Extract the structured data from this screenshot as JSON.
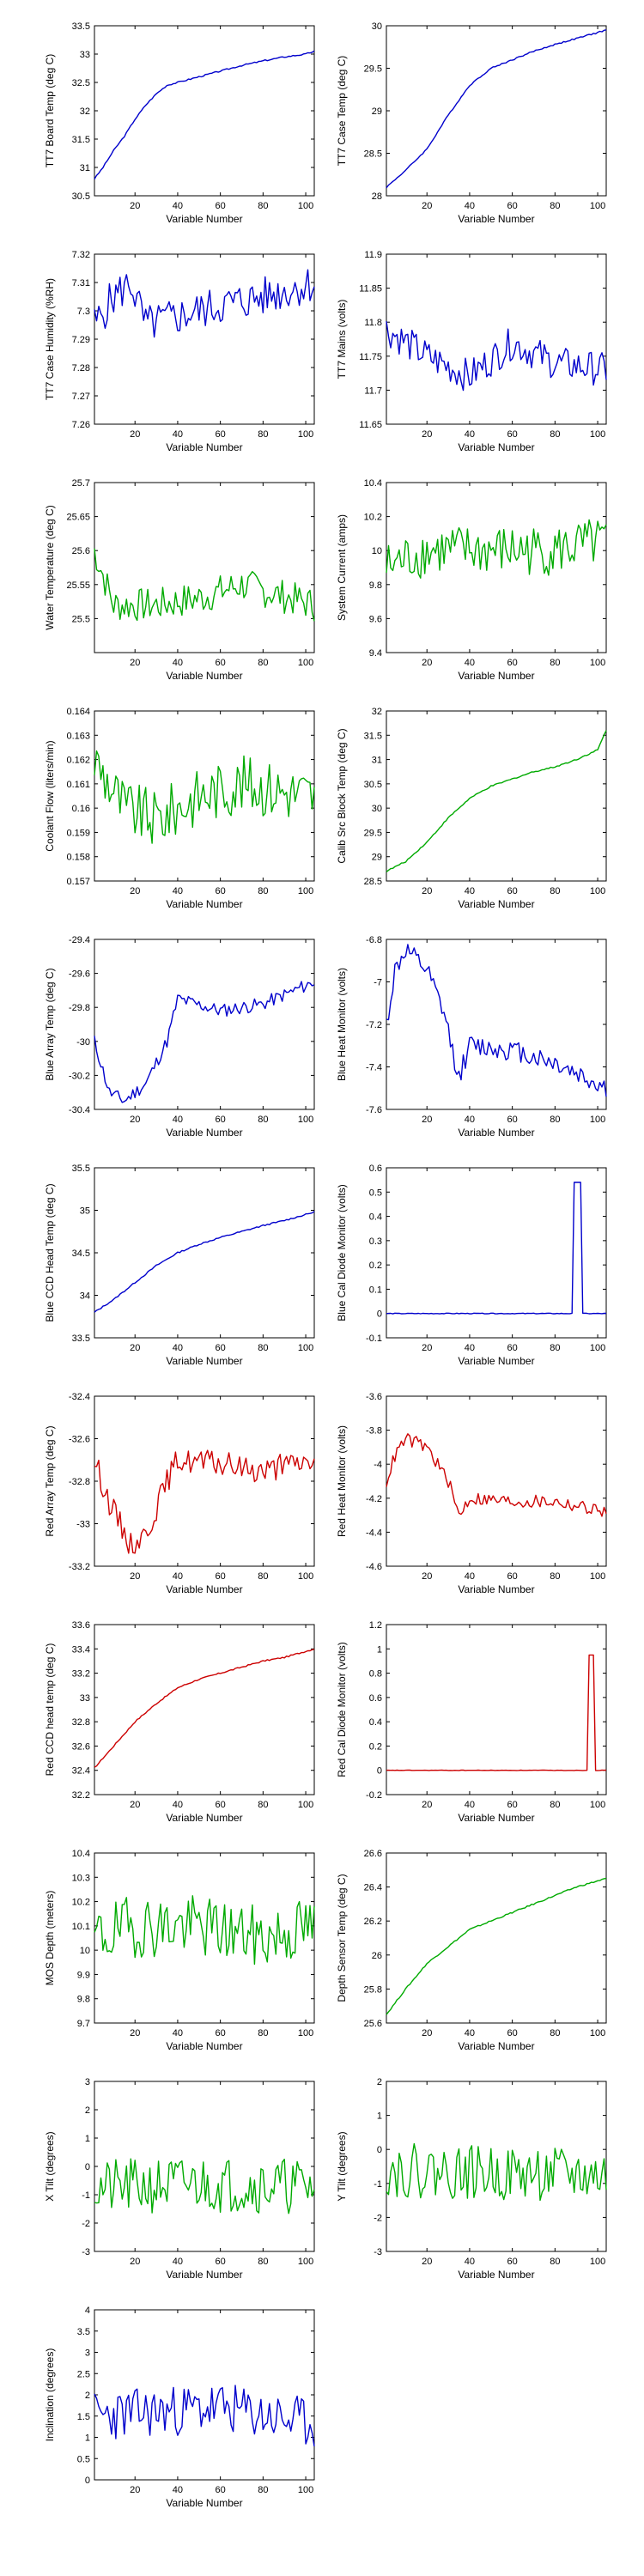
{
  "figure": {
    "title": ""
  },
  "chart_data": [
    {
      "type": "line",
      "ylabel": "TT7 Board Temp (deg C)",
      "xlabel": "Variable Number",
      "xlim": [
        1,
        104
      ],
      "xticks": [
        20,
        40,
        60,
        80,
        100
      ],
      "ylim": [
        30.5,
        33.5
      ],
      "yticks": [
        "30.5",
        "31",
        "31.5",
        "32",
        "32.5",
        "33",
        "33.5"
      ],
      "color": "#0000cc",
      "pattern": "rise",
      "points": [
        [
          1,
          30.8
        ],
        [
          5,
          31.0
        ],
        [
          10,
          31.3
        ],
        [
          15,
          31.55
        ],
        [
          20,
          31.85
        ],
        [
          25,
          32.1
        ],
        [
          30,
          32.3
        ],
        [
          35,
          32.45
        ],
        [
          40,
          32.5
        ],
        [
          50,
          32.6
        ],
        [
          60,
          32.7
        ],
        [
          70,
          32.8
        ],
        [
          80,
          32.88
        ],
        [
          90,
          32.95
        ],
        [
          100,
          33.0
        ],
        [
          104,
          33.05
        ]
      ]
    },
    {
      "type": "line",
      "ylabel": "TT7 Case Temp (deg C)",
      "xlabel": "Variable Number",
      "xlim": [
        1,
        104
      ],
      "xticks": [
        20,
        40,
        60,
        80,
        100
      ],
      "ylim": [
        28,
        30
      ],
      "yticks": [
        "28",
        "28.5",
        "29",
        "29.5",
        "30"
      ],
      "color": "#0000cc",
      "pattern": "rise",
      "points": [
        [
          1,
          28.1
        ],
        [
          10,
          28.3
        ],
        [
          20,
          28.55
        ],
        [
          30,
          28.95
        ],
        [
          40,
          29.3
        ],
        [
          50,
          29.5
        ],
        [
          60,
          29.6
        ],
        [
          70,
          29.7
        ],
        [
          80,
          29.78
        ],
        [
          90,
          29.85
        ],
        [
          100,
          29.92
        ],
        [
          104,
          29.95
        ]
      ]
    },
    {
      "type": "line",
      "ylabel": "TT7 Case Humidity (%RH)",
      "xlabel": "Variable Number",
      "xlim": [
        1,
        104
      ],
      "xticks": [
        20,
        40,
        60,
        80,
        100
      ],
      "ylim": [
        7.26,
        7.32
      ],
      "yticks": [
        "7.26",
        "7.27",
        "7.28",
        "7.29",
        "7.3",
        "7.31",
        "7.32"
      ],
      "color": "#0000cc",
      "pattern": "noisy",
      "noise": 0.007,
      "points": [
        [
          1,
          7.295
        ],
        [
          10,
          7.305
        ],
        [
          18,
          7.31
        ],
        [
          25,
          7.295
        ],
        [
          40,
          7.298
        ],
        [
          60,
          7.302
        ],
        [
          80,
          7.305
        ],
        [
          104,
          7.31
        ]
      ]
    },
    {
      "type": "line",
      "ylabel": "TT7 Mains (volts)",
      "xlabel": "Variable Number",
      "xlim": [
        1,
        104
      ],
      "xticks": [
        20,
        40,
        60,
        80,
        100
      ],
      "ylim": [
        11.65,
        11.9
      ],
      "yticks": [
        "11.65",
        "11.7",
        "11.75",
        "11.8",
        "11.85",
        "11.9"
      ],
      "color": "#0000cc",
      "pattern": "noisy",
      "noise": 0.025,
      "points": [
        [
          1,
          11.79
        ],
        [
          20,
          11.75
        ],
        [
          40,
          11.72
        ],
        [
          60,
          11.77
        ],
        [
          80,
          11.74
        ],
        [
          104,
          11.73
        ]
      ]
    },
    {
      "type": "line",
      "ylabel": "Water Temperature (deg C)",
      "xlabel": "Variable Number",
      "xlim": [
        1,
        104
      ],
      "xticks": [
        20,
        40,
        60,
        80,
        100
      ],
      "ylim": [
        25.45,
        25.7
      ],
      "yticks": [
        "25.5",
        "25.55",
        "25.6",
        "25.65",
        "25.7"
      ],
      "color": "#00aa00",
      "pattern": "noisy",
      "noise": 0.025,
      "points": [
        [
          1,
          25.6
        ],
        [
          10,
          25.52
        ],
        [
          30,
          25.52
        ],
        [
          50,
          25.53
        ],
        [
          70,
          25.55
        ],
        [
          104,
          25.52
        ]
      ]
    },
    {
      "type": "line",
      "ylabel": "System Current (amps)",
      "xlabel": "Variable Number",
      "xlim": [
        1,
        104
      ],
      "xticks": [
        20,
        40,
        60,
        80,
        100
      ],
      "ylim": [
        9.4,
        10.4
      ],
      "yticks": [
        "9.4",
        "9.6",
        "9.8",
        "10",
        "10.2",
        "10.4"
      ],
      "color": "#00aa00",
      "pattern": "noisy",
      "noise": 0.15,
      "points": [
        [
          1,
          9.9
        ],
        [
          20,
          10.0
        ],
        [
          50,
          10.0
        ],
        [
          80,
          10.0
        ],
        [
          104,
          10.05
        ]
      ]
    },
    {
      "type": "line",
      "ylabel": "Coolant Flow (liters/min)",
      "xlabel": "Variable Number",
      "xlim": [
        1,
        104
      ],
      "xticks": [
        20,
        40,
        60,
        80,
        100
      ],
      "ylim": [
        0.157,
        0.164
      ],
      "yticks": [
        "0.157",
        "0.158",
        "0.159",
        "0.16",
        "0.161",
        "0.162",
        "0.163",
        "0.164"
      ],
      "color": "#00aa00",
      "pattern": "noisy",
      "noise": 0.0012,
      "points": [
        [
          1,
          0.162
        ],
        [
          15,
          0.16
        ],
        [
          30,
          0.1595
        ],
        [
          50,
          0.1605
        ],
        [
          70,
          0.161
        ],
        [
          104,
          0.1605
        ]
      ]
    },
    {
      "type": "line",
      "ylabel": "Calib Src Block Temp (deg C)",
      "xlabel": "Variable Number",
      "xlim": [
        1,
        104
      ],
      "xticks": [
        20,
        40,
        60,
        80,
        100
      ],
      "ylim": [
        28.5,
        32
      ],
      "yticks": [
        "28.5",
        "29",
        "29.5",
        "30",
        "30.5",
        "31",
        "31.5",
        "32"
      ],
      "color": "#00aa00",
      "pattern": "rise",
      "points": [
        [
          1,
          28.7
        ],
        [
          10,
          28.9
        ],
        [
          20,
          29.3
        ],
        [
          30,
          29.8
        ],
        [
          40,
          30.2
        ],
        [
          50,
          30.45
        ],
        [
          60,
          30.6
        ],
        [
          70,
          30.75
        ],
        [
          80,
          30.85
        ],
        [
          90,
          31.0
        ],
        [
          100,
          31.2
        ],
        [
          104,
          31.6
        ]
      ]
    },
    {
      "type": "line",
      "ylabel": "Blue Array Temp (deg C)",
      "xlabel": "Variable Number",
      "xlim": [
        1,
        104
      ],
      "xticks": [
        20,
        40,
        60,
        80,
        100
      ],
      "ylim": [
        -30.4,
        -29.4
      ],
      "yticks": [
        "-30.4",
        "-30.2",
        "-30",
        "-29.8",
        "-29.6",
        "-29.4"
      ],
      "color": "#0000cc",
      "pattern": "noisy",
      "noise": 0.04,
      "points": [
        [
          1,
          -30.0
        ],
        [
          8,
          -30.3
        ],
        [
          15,
          -30.35
        ],
        [
          25,
          -30.25
        ],
        [
          35,
          -30.0
        ],
        [
          40,
          -29.75
        ],
        [
          60,
          -29.82
        ],
        [
          80,
          -29.78
        ],
        [
          104,
          -29.65
        ]
      ]
    },
    {
      "type": "line",
      "ylabel": "Blue Heat Monitor (volts)",
      "xlabel": "Variable Number",
      "xlim": [
        1,
        104
      ],
      "xticks": [
        20,
        40,
        60,
        80,
        100
      ],
      "ylim": [
        -7.6,
        -6.8
      ],
      "yticks": [
        "-7.6",
        "-7.4",
        "-7.2",
        "-7",
        "-6.8"
      ],
      "color": "#0000cc",
      "pattern": "noisy",
      "noise": 0.05,
      "points": [
        [
          1,
          -7.2
        ],
        [
          5,
          -6.95
        ],
        [
          10,
          -6.85
        ],
        [
          20,
          -6.95
        ],
        [
          28,
          -7.15
        ],
        [
          35,
          -7.45
        ],
        [
          40,
          -7.3
        ],
        [
          60,
          -7.32
        ],
        [
          80,
          -7.38
        ],
        [
          104,
          -7.5
        ]
      ]
    },
    {
      "type": "line",
      "ylabel": "Blue CCD Head Temp (deg C)",
      "xlabel": "Variable Number",
      "xlim": [
        1,
        104
      ],
      "xticks": [
        20,
        40,
        60,
        80,
        100
      ],
      "ylim": [
        33.5,
        35.5
      ],
      "yticks": [
        "33.5",
        "34",
        "34.5",
        "35",
        "35.5"
      ],
      "color": "#0000cc",
      "pattern": "rise",
      "points": [
        [
          1,
          33.8
        ],
        [
          10,
          33.95
        ],
        [
          20,
          34.15
        ],
        [
          30,
          34.35
        ],
        [
          40,
          34.5
        ],
        [
          50,
          34.6
        ],
        [
          60,
          34.68
        ],
        [
          70,
          34.75
        ],
        [
          80,
          34.82
        ],
        [
          90,
          34.88
        ],
        [
          100,
          34.95
        ],
        [
          104,
          34.98
        ]
      ]
    },
    {
      "type": "line",
      "ylabel": "Blue Cal Diode Monitor (volts)",
      "xlabel": "Variable Number",
      "xlim": [
        1,
        104
      ],
      "xticks": [
        20,
        40,
        60,
        80,
        100
      ],
      "ylim": [
        -0.1,
        0.6
      ],
      "yticks": [
        "-0.1",
        "0",
        "0.1",
        "0.2",
        "0.3",
        "0.4",
        "0.5",
        "0.6"
      ],
      "color": "#0000cc",
      "pattern": "spike",
      "spike_x": [
        89,
        92
      ],
      "spike_value": 0.54,
      "baseline": 0,
      "points": [
        [
          1,
          0
        ],
        [
          104,
          0
        ]
      ]
    },
    {
      "type": "line",
      "ylabel": "Red Array Temp (deg C)",
      "xlabel": "Variable Number",
      "xlim": [
        1,
        104
      ],
      "xticks": [
        20,
        40,
        60,
        80,
        100
      ],
      "ylim": [
        -33.2,
        -32.4
      ],
      "yticks": [
        "-33.2",
        "-33",
        "-32.8",
        "-32.6",
        "-32.4"
      ],
      "color": "#cc0000",
      "pattern": "noisy",
      "noise": 0.06,
      "points": [
        [
          1,
          -32.7
        ],
        [
          8,
          -32.9
        ],
        [
          18,
          -33.1
        ],
        [
          25,
          -33.05
        ],
        [
          35,
          -32.8
        ],
        [
          40,
          -32.7
        ],
        [
          60,
          -32.72
        ],
        [
          80,
          -32.75
        ],
        [
          104,
          -32.7
        ]
      ]
    },
    {
      "type": "line",
      "ylabel": "Red Heat Monitor (volts)",
      "xlabel": "Variable Number",
      "xlim": [
        1,
        104
      ],
      "xticks": [
        20,
        40,
        60,
        80,
        100
      ],
      "ylim": [
        -4.6,
        -3.6
      ],
      "yticks": [
        "-4.6",
        "-4.4",
        "-4.2",
        "-4",
        "-3.8",
        "-3.6"
      ],
      "color": "#cc0000",
      "pattern": "noisy",
      "noise": 0.04,
      "points": [
        [
          1,
          -4.1
        ],
        [
          5,
          -3.95
        ],
        [
          10,
          -3.85
        ],
        [
          20,
          -3.9
        ],
        [
          30,
          -4.1
        ],
        [
          35,
          -4.3
        ],
        [
          40,
          -4.2
        ],
        [
          60,
          -4.22
        ],
        [
          80,
          -4.22
        ],
        [
          104,
          -4.28
        ]
      ]
    },
    {
      "type": "line",
      "ylabel": "Red CCD head temp (deg C)",
      "xlabel": "Variable Number",
      "xlim": [
        1,
        104
      ],
      "xticks": [
        20,
        40,
        60,
        80,
        100
      ],
      "ylim": [
        32.2,
        33.6
      ],
      "yticks": [
        "32.2",
        "32.4",
        "32.6",
        "32.8",
        "33",
        "33.2",
        "33.4",
        "33.6"
      ],
      "color": "#cc0000",
      "pattern": "rise",
      "points": [
        [
          1,
          32.42
        ],
        [
          10,
          32.6
        ],
        [
          20,
          32.8
        ],
        [
          30,
          32.95
        ],
        [
          40,
          33.08
        ],
        [
          50,
          33.15
        ],
        [
          60,
          33.2
        ],
        [
          70,
          33.25
        ],
        [
          80,
          33.3
        ],
        [
          90,
          33.33
        ],
        [
          100,
          33.38
        ],
        [
          104,
          33.4
        ]
      ]
    },
    {
      "type": "line",
      "ylabel": "Red Cal Diode Monitor (volts)",
      "xlabel": "Variable Number",
      "xlim": [
        1,
        104
      ],
      "xticks": [
        20,
        40,
        60,
        80,
        100
      ],
      "ylim": [
        -0.2,
        1.2
      ],
      "yticks": [
        "-0.2",
        "0",
        "0.2",
        "0.4",
        "0.6",
        "0.8",
        "1",
        "1.2"
      ],
      "color": "#cc0000",
      "pattern": "spike",
      "spike_x": [
        96,
        98
      ],
      "spike_value": 0.95,
      "baseline": 0,
      "points": [
        [
          1,
          0
        ],
        [
          104,
          0
        ]
      ]
    },
    {
      "type": "line",
      "ylabel": "MOS Depth (meters)",
      "xlabel": "Variable Number",
      "xlim": [
        1,
        104
      ],
      "xticks": [
        20,
        40,
        60,
        80,
        100
      ],
      "ylim": [
        9.7,
        10.4
      ],
      "yticks": [
        "9.7",
        "9.8",
        "9.9",
        "10",
        "10.1",
        "10.2",
        "10.3",
        "10.4"
      ],
      "color": "#00aa00",
      "pattern": "noisy",
      "noise": 0.13,
      "points": [
        [
          1,
          10.05
        ],
        [
          20,
          10.1
        ],
        [
          50,
          10.1
        ],
        [
          80,
          10.05
        ],
        [
          104,
          10.1
        ]
      ]
    },
    {
      "type": "line",
      "ylabel": "Depth Sensor Temp (deg C)",
      "xlabel": "Variable Number",
      "xlim": [
        1,
        104
      ],
      "xticks": [
        20,
        40,
        60,
        80,
        100
      ],
      "ylim": [
        25.6,
        26.6
      ],
      "yticks": [
        "25.6",
        "25.8",
        "26",
        "26.2",
        "26.4",
        "26.6"
      ],
      "color": "#00aa00",
      "pattern": "rise",
      "points": [
        [
          1,
          25.65
        ],
        [
          10,
          25.8
        ],
        [
          20,
          25.95
        ],
        [
          30,
          26.05
        ],
        [
          40,
          26.15
        ],
        [
          50,
          26.2
        ],
        [
          60,
          26.25
        ],
        [
          70,
          26.3
        ],
        [
          80,
          26.35
        ],
        [
          90,
          26.4
        ],
        [
          104,
          26.45
        ]
      ]
    },
    {
      "type": "line",
      "ylabel": "X Tilt  (degrees)",
      "xlabel": "Variable Number",
      "xlim": [
        1,
        104
      ],
      "xticks": [
        20,
        40,
        60,
        80,
        100
      ],
      "ylim": [
        -3,
        3
      ],
      "yticks": [
        "-3",
        "-2",
        "-1",
        "0",
        "1",
        "2",
        "3"
      ],
      "color": "#00aa00",
      "pattern": "noisy",
      "noise": 1.0,
      "points": [
        [
          1,
          -0.8
        ],
        [
          50,
          -0.6
        ],
        [
          104,
          -0.7
        ]
      ]
    },
    {
      "type": "line",
      "ylabel": "Y Tilt  (degrees)",
      "xlabel": "Variable Number",
      "xlim": [
        1,
        104
      ],
      "xticks": [
        20,
        40,
        60,
        80,
        100
      ],
      "ylim": [
        -3,
        2
      ],
      "yticks": [
        "-3",
        "-2",
        "-1",
        "0",
        "1",
        "2"
      ],
      "color": "#00aa00",
      "pattern": "noisy",
      "noise": 0.8,
      "points": [
        [
          1,
          -0.6
        ],
        [
          50,
          -0.7
        ],
        [
          104,
          -0.8
        ]
      ]
    },
    {
      "type": "line",
      "ylabel": "Inclination  (degrees)",
      "xlabel": "Variable Number",
      "xlim": [
        1,
        104
      ],
      "xticks": [
        20,
        40,
        60,
        80,
        100
      ],
      "ylim": [
        0,
        4
      ],
      "yticks": [
        "0",
        "0.5",
        "1",
        "1.5",
        "2",
        "2.5",
        "3",
        "3.5",
        "4"
      ],
      "color": "#0000cc",
      "pattern": "noisy",
      "noise": 0.6,
      "points": [
        [
          1,
          1.5
        ],
        [
          30,
          1.6
        ],
        [
          60,
          1.7
        ],
        [
          104,
          1.3
        ]
      ]
    }
  ]
}
